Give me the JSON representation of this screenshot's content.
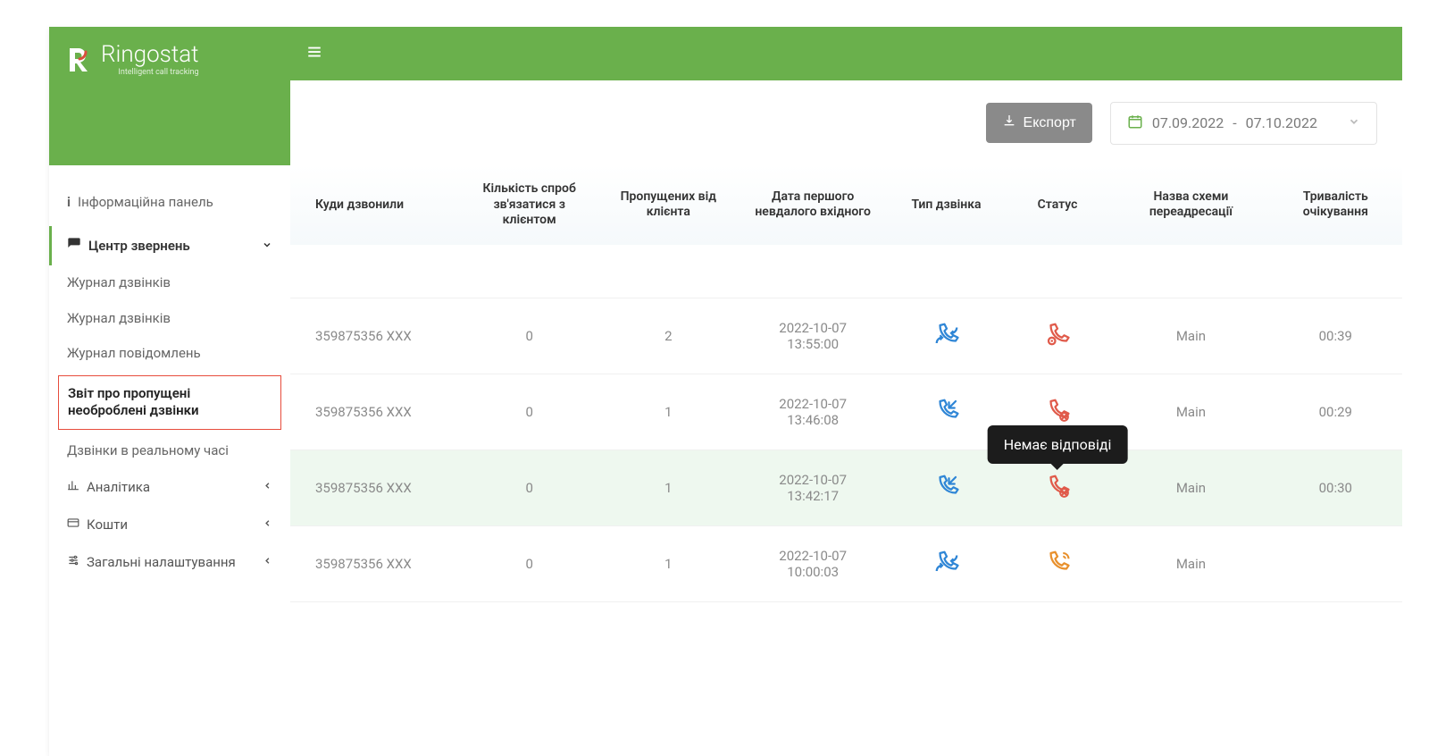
{
  "brand": {
    "name": "Ringostat",
    "tagline": "Intelligent call tracking"
  },
  "sidebar": {
    "dashboard": "Інформаційна панель",
    "requests_center": "Центр звернень",
    "items": [
      "Журнал дзвінків",
      "Журнал дзвінків",
      "Журнал повідомлень",
      "Звіт про пропущені необроблені дзвінки",
      "Дзвінки в реальному часі"
    ],
    "analytics": "Аналітика",
    "funds": "Кошти",
    "settings": "Загальні налаштування"
  },
  "toolbar": {
    "export_label": "Експорт",
    "date_from": "07.09.2022",
    "date_to": "07.10.2022",
    "date_sep": "-"
  },
  "table": {
    "headers": {
      "c0": "Куди дзвонили",
      "c1": "Кількість спроб зв'язатися з клієнтом",
      "c2": "Пропущених від клієнта",
      "c3": "Дата першого невдалого вхідного",
      "c4": "Тип дзвінка",
      "c5": "Статус",
      "c6": "Назва схеми переадресації",
      "c7": "Тривалість очікування"
    },
    "rows": [
      {
        "number": "359875356 XXX",
        "attempts": "0",
        "missed": "2",
        "date": "2022-10-07 13:55:00",
        "type_icon": "cycle",
        "type_color": "#2f86d6",
        "status_icon": "busy",
        "status_color": "#e05a4a",
        "scheme": "Main",
        "wait": "00:39",
        "highlight": false,
        "tooltip": null
      },
      {
        "number": "359875356 XXX",
        "attempts": "0",
        "missed": "1",
        "date": "2022-10-07 13:46:08",
        "type_icon": "incoming",
        "type_color": "#2f86d6",
        "status_icon": "noanswer",
        "status_color": "#e05a4a",
        "scheme": "Main",
        "wait": "00:29",
        "highlight": false,
        "tooltip": null
      },
      {
        "number": "359875356 XXX",
        "attempts": "0",
        "missed": "1",
        "date": "2022-10-07 13:42:17",
        "type_icon": "incoming",
        "type_color": "#2f86d6",
        "status_icon": "noanswer",
        "status_color": "#e05a4a",
        "scheme": "Main",
        "wait": "00:30",
        "highlight": true,
        "tooltip": "Немає відповіді"
      },
      {
        "number": "359875356 XXX",
        "attempts": "0",
        "missed": "1",
        "date": "2022-10-07 10:00:03",
        "type_icon": "cycle",
        "type_color": "#2f86d6",
        "status_icon": "ringing",
        "status_color": "#e8902c",
        "scheme": "Main",
        "wait": ""
      }
    ]
  },
  "colors": {
    "primary": "#6ab04c",
    "export_btn": "#8a8a8a",
    "tooltip_bg": "#1c1c1c",
    "highlight_row": "#eef8ef",
    "active_border": "#e74c3c"
  }
}
